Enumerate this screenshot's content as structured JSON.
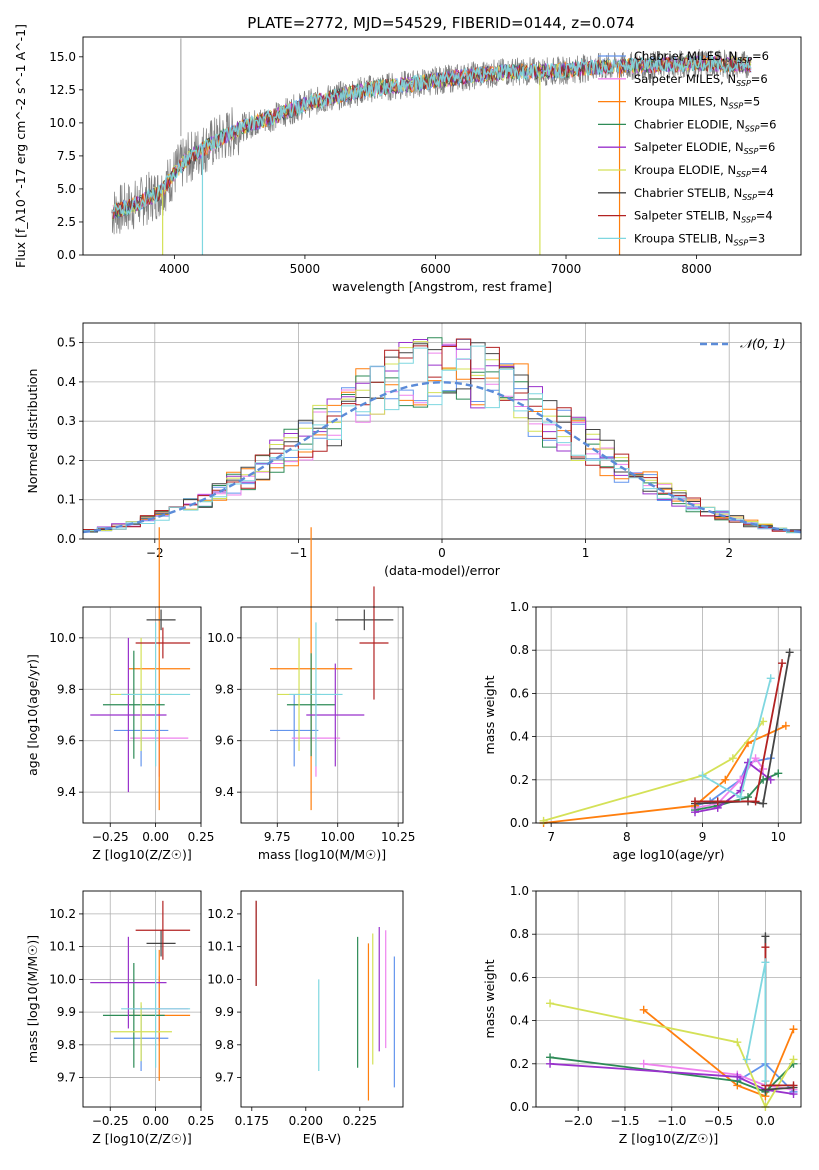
{
  "figure": {
    "title": "PLATE=2772, MJD=54529, FIBERID=0144, z=0.074"
  },
  "colors": {
    "series": [
      "#6495ed",
      "#ee82ee",
      "#ff7f0e",
      "#2e8b57",
      "#9932cc",
      "#d4e157",
      "#444444",
      "#b22222",
      "#7fd7e0"
    ],
    "data": "#7f7f7f"
  },
  "legend": {
    "spectrum": [
      "Chabrier MILES, N_SSP=6",
      "Salpeter MILES, N_SSP=6",
      "Kroupa MILES, N_SSP=5",
      "Chabrier ELODIE, N_SSP=6",
      "Salpeter ELODIE, N_SSP=6",
      "Kroupa ELODIE, N_SSP=4",
      "Chabrier STELIB, N_SSP=4",
      "Salpeter STELIB, N_SSP=4",
      "Kroupa STELIB, N_SSP=3"
    ],
    "normal": "𝒩(0, 1)"
  },
  "chart_data": [
    {
      "id": "spectrum",
      "type": "line",
      "xlabel": "wavelength [Angstrom, rest frame]",
      "ylabel": "Flux [f_λ10^-17 erg cm^-2 s^-1 A^-1]",
      "xlim": [
        3300,
        8800
      ],
      "ylim": [
        0,
        16.5
      ],
      "xticks": [
        4000,
        5000,
        6000,
        7000,
        8000
      ],
      "yticks": [
        0.0,
        2.5,
        5.0,
        7.5,
        10.0,
        12.5,
        15.0
      ],
      "xtick_labels": [
        "4000",
        "5000",
        "6000",
        "7000",
        "8000"
      ],
      "ytick_labels": [
        "0.0",
        "2.5",
        "5.0",
        "7.5",
        "10.0",
        "12.5",
        "15.0"
      ],
      "grid": false,
      "legend_position": "right",
      "series": [
        {
          "name": "data",
          "x": [
            3520,
            3700,
            3900,
            4000,
            4100,
            4300,
            4500,
            4800,
            5000,
            5200,
            5500,
            5800,
            6000,
            6300,
            6600,
            6900,
            7200,
            7500,
            8000,
            8400
          ],
          "y": [
            3.2,
            3.8,
            4.8,
            6.2,
            7.3,
            8.5,
            9.6,
            10.6,
            11.4,
            11.9,
            12.6,
            12.9,
            13.2,
            13.6,
            13.9,
            13.9,
            14.2,
            14.3,
            14.5,
            14.4
          ]
        }
      ]
    },
    {
      "id": "residuals",
      "type": "line",
      "xlabel": "(data-model)/error",
      "ylabel": "Normed distribution",
      "xlim": [
        -2.5,
        2.5
      ],
      "ylim": [
        0,
        0.55
      ],
      "xticks": [
        -2,
        -1,
        0,
        1,
        2
      ],
      "yticks": [
        0.0,
        0.1,
        0.2,
        0.3,
        0.4,
        0.5
      ],
      "xtick_labels": [
        "−2",
        "−1",
        "0",
        "1",
        "2"
      ],
      "ytick_labels": [
        "0.0",
        "0.1",
        "0.2",
        "0.3",
        "0.4",
        "0.5"
      ],
      "grid": true,
      "legend_position": "top-right",
      "series": [
        {
          "name": "𝒩(0, 1)",
          "x": [
            -2.5,
            -2,
            -1.5,
            -1,
            -0.5,
            0,
            0.5,
            1,
            1.5,
            2,
            2.5
          ],
          "y": [
            0.018,
            0.054,
            0.13,
            0.242,
            0.352,
            0.399,
            0.352,
            0.242,
            0.13,
            0.054,
            0.018
          ]
        }
      ]
    },
    {
      "id": "age_vs_Z",
      "type": "scatter",
      "xlabel": "Z [log10(Z/Z☉)]",
      "ylabel": "age [log10(age/yr)]",
      "xlim": [
        -0.4,
        0.25
      ],
      "ylim": [
        9.28,
        10.12
      ],
      "xticks": [
        -0.25,
        0,
        0.25
      ],
      "yticks": [
        9.4,
        9.6,
        9.8,
        10.0
      ],
      "xtick_labels": [
        "−0.25",
        "0.00",
        "0.25"
      ],
      "ytick_labels": [
        "9.4",
        "9.6",
        "9.8",
        "10.0"
      ],
      "grid": true,
      "points": [
        {
          "x": -0.08,
          "y": 9.64,
          "xerr": 0.15,
          "yerr": 0.14
        },
        {
          "x": 0.02,
          "y": 9.61,
          "xerr": 0.16,
          "yerr": 0.15
        },
        {
          "x": 0.02,
          "y": 9.88,
          "xerr": 0.17,
          "yerr": 0.55
        },
        {
          "x": -0.12,
          "y": 9.74,
          "xerr": 0.17,
          "yerr": 0.21
        },
        {
          "x": -0.15,
          "y": 9.7,
          "xerr": 0.21,
          "yerr": 0.3
        },
        {
          "x": -0.08,
          "y": 9.78,
          "xerr": 0.17,
          "yerr": 0.22
        },
        {
          "x": 0.03,
          "y": 10.07,
          "xerr": 0.08,
          "yerr": 0.04
        },
        {
          "x": 0.04,
          "y": 9.98,
          "xerr": 0.15,
          "yerr": 0.06
        },
        {
          "x": 0.0,
          "y": 9.78,
          "xerr": 0.19,
          "yerr": 0.28
        }
      ]
    },
    {
      "id": "age_vs_mass",
      "type": "scatter",
      "xlabel": "mass [log10(M/M☉)]",
      "ylabel": "",
      "xlim": [
        9.6,
        10.27
      ],
      "ylim": [
        9.28,
        10.12
      ],
      "xticks": [
        9.75,
        10.0,
        10.25
      ],
      "yticks": [
        9.4,
        9.6,
        9.8,
        10.0
      ],
      "xtick_labels": [
        "9.75",
        "10.00",
        "10.25"
      ],
      "ytick_labels": [
        "9.4",
        "9.6",
        "9.8",
        "10.0"
      ],
      "grid": true,
      "points": [
        {
          "x": 9.82,
          "y": 9.64,
          "xerr": 0.1,
          "yerr": 0.14
        },
        {
          "x": 9.91,
          "y": 9.61,
          "xerr": 0.1,
          "yerr": 0.15
        },
        {
          "x": 9.89,
          "y": 9.88,
          "xerr": 0.17,
          "yerr": 0.55
        },
        {
          "x": 9.89,
          "y": 9.74,
          "xerr": 0.1,
          "yerr": 0.2
        },
        {
          "x": 9.99,
          "y": 9.7,
          "xerr": 0.12,
          "yerr": 0.2
        },
        {
          "x": 9.84,
          "y": 9.78,
          "xerr": 0.09,
          "yerr": 0.22
        },
        {
          "x": 10.11,
          "y": 10.07,
          "xerr": 0.12,
          "yerr": 0.04
        },
        {
          "x": 10.15,
          "y": 9.98,
          "xerr": 0.06,
          "yerr": 0.22
        },
        {
          "x": 9.91,
          "y": 9.78,
          "xerr": 0.11,
          "yerr": 0.28
        }
      ]
    },
    {
      "id": "massweight_vs_age",
      "type": "line",
      "xlabel": "age log10(age/yr)",
      "ylabel": "mass weight",
      "xlim": [
        6.8,
        10.3
      ],
      "ylim": [
        0,
        1.0
      ],
      "xticks": [
        7,
        8,
        9,
        10
      ],
      "yticks": [
        0.0,
        0.2,
        0.4,
        0.6,
        0.8,
        1.0
      ],
      "xtick_labels": [
        "7",
        "8",
        "9",
        "10"
      ],
      "ytick_labels": [
        "0.0",
        "0.2",
        "0.4",
        "0.6",
        "0.8",
        "1.0"
      ],
      "grid": true,
      "series": [
        {
          "x": [
            8.9,
            9.1,
            9.5,
            9.6,
            9.9
          ],
          "y": [
            0.08,
            0.1,
            0.2,
            0.28,
            0.3
          ]
        },
        {
          "x": [
            8.9,
            9.2,
            9.5,
            9.7,
            9.8
          ],
          "y": [
            0.07,
            0.09,
            0.2,
            0.3,
            0.25
          ]
        },
        {
          "x": [
            6.9,
            8.9,
            9.3,
            9.6,
            10.1
          ],
          "y": [
            0.0,
            0.08,
            0.2,
            0.37,
            0.45
          ]
        },
        {
          "x": [
            8.9,
            9.2,
            9.6,
            9.8,
            10.0
          ],
          "y": [
            0.06,
            0.08,
            0.12,
            0.2,
            0.23
          ]
        },
        {
          "x": [
            8.9,
            9.2,
            9.5,
            9.6,
            9.9
          ],
          "y": [
            0.05,
            0.07,
            0.15,
            0.28,
            0.2
          ]
        },
        {
          "x": [
            6.9,
            9.0,
            9.4,
            9.8
          ],
          "y": [
            0.01,
            0.22,
            0.3,
            0.47
          ]
        },
        {
          "x": [
            8.9,
            9.6,
            9.8,
            10.15
          ],
          "y": [
            0.09,
            0.1,
            0.09,
            0.79
          ]
        },
        {
          "x": [
            8.9,
            9.2,
            9.7,
            10.05
          ],
          "y": [
            0.1,
            0.1,
            0.1,
            0.74
          ]
        },
        {
          "x": [
            9.0,
            9.5,
            9.9
          ],
          "y": [
            0.22,
            0.12,
            0.67
          ]
        }
      ]
    },
    {
      "id": "mass_vs_Z",
      "type": "scatter",
      "xlabel": "Z [log10(Z/Z☉)]",
      "ylabel": "mass [log10(M/M☉)]",
      "xlim": [
        -0.4,
        0.25
      ],
      "ylim": [
        9.61,
        10.27
      ],
      "xticks": [
        -0.25,
        0,
        0.25
      ],
      "yticks": [
        9.7,
        9.8,
        9.9,
        10.0,
        10.1,
        10.2
      ],
      "xtick_labels": [
        "−0.25",
        "0.00",
        "0.25"
      ],
      "ytick_labels": [
        "9.7",
        "9.8",
        "9.9",
        "10.0",
        "10.1",
        "10.2"
      ],
      "grid": true,
      "points": [
        {
          "x": -0.08,
          "y": 9.82,
          "xerr": 0.15,
          "yerr": 0.1
        },
        {
          "x": 0.02,
          "y": 9.91,
          "xerr": 0.16,
          "yerr": 0.1
        },
        {
          "x": 0.02,
          "y": 9.89,
          "xerr": 0.17,
          "yerr": 0.2
        },
        {
          "x": -0.12,
          "y": 9.89,
          "xerr": 0.17,
          "yerr": 0.16
        },
        {
          "x": -0.15,
          "y": 9.99,
          "xerr": 0.21,
          "yerr": 0.14
        },
        {
          "x": -0.08,
          "y": 9.84,
          "xerr": 0.17,
          "yerr": 0.09
        },
        {
          "x": 0.03,
          "y": 10.11,
          "xerr": 0.08,
          "yerr": 0.04
        },
        {
          "x": 0.04,
          "y": 10.15,
          "xerr": 0.15,
          "yerr": 0.09
        },
        {
          "x": 0.0,
          "y": 9.91,
          "xerr": 0.19,
          "yerr": 0.18
        }
      ]
    },
    {
      "id": "mass_vs_ebv",
      "type": "scatter",
      "xlabel": "E(B-V)",
      "ylabel": "",
      "xlim": [
        0.17,
        0.245
      ],
      "ylim": [
        9.61,
        10.27
      ],
      "xticks": [
        0.175,
        0.2,
        0.225
      ],
      "yticks": [
        9.7,
        9.8,
        9.9,
        10.0,
        10.1,
        10.2
      ],
      "xtick_labels": [
        "0.175",
        "0.200",
        "0.225"
      ],
      "ytick_labels": [
        "9.7",
        "9.8",
        "9.9",
        "10.0",
        "10.1",
        "10.2"
      ],
      "grid": false,
      "points": [
        {
          "x": 0.241,
          "y": 9.87,
          "xerr": 0,
          "yerr": 0.2
        },
        {
          "x": 0.237,
          "y": 9.97,
          "xerr": 0,
          "yerr": 0.18
        },
        {
          "x": 0.229,
          "y": 9.87,
          "xerr": 0,
          "yerr": 0.24
        },
        {
          "x": 0.224,
          "y": 9.93,
          "xerr": 0,
          "yerr": 0.2
        },
        {
          "x": 0.234,
          "y": 9.97,
          "xerr": 0,
          "yerr": 0.19
        },
        {
          "x": 0.231,
          "y": 9.94,
          "xerr": 0,
          "yerr": 0.2
        },
        {
          "x": 0.177,
          "y": 10.11,
          "xerr": 0,
          "yerr": 0.13
        },
        {
          "x": 0.177,
          "y": 10.11,
          "xerr": 0,
          "yerr": 0.13
        },
        {
          "x": 0.206,
          "y": 9.86,
          "xerr": 0,
          "yerr": 0.14
        }
      ]
    },
    {
      "id": "massweight_vs_Z",
      "type": "line",
      "xlabel": "Z [log10(Z/Z☉)]",
      "ylabel": "mass weight",
      "xlim": [
        -2.45,
        0.38
      ],
      "ylim": [
        0,
        1.0
      ],
      "xticks": [
        -2.0,
        -1.5,
        -1.0,
        -0.5,
        0.0
      ],
      "yticks": [
        0.0,
        0.2,
        0.4,
        0.6,
        0.8,
        1.0
      ],
      "xtick_labels": [
        "−2.0",
        "−1.5",
        "−1.0",
        "−0.5",
        "0.0"
      ],
      "ytick_labels": [
        "0.0",
        "0.2",
        "0.4",
        "0.6",
        "0.8",
        "1.0"
      ],
      "grid": true,
      "series": [
        {
          "x": [
            -0.3,
            0.0,
            0.3
          ],
          "y": [
            0.12,
            0.2,
            0.07
          ]
        },
        {
          "x": [
            -1.3,
            -0.3,
            0.0,
            0.3
          ],
          "y": [
            0.2,
            0.15,
            0.1,
            0.08
          ]
        },
        {
          "x": [
            -1.3,
            -0.3,
            0.0,
            0.3
          ],
          "y": [
            0.45,
            0.1,
            0.05,
            0.36
          ]
        },
        {
          "x": [
            -2.3,
            -0.3,
            0.0,
            0.3
          ],
          "y": [
            0.23,
            0.12,
            0.07,
            0.2
          ]
        },
        {
          "x": [
            -2.3,
            -0.3,
            0.0,
            0.3
          ],
          "y": [
            0.2,
            0.14,
            0.08,
            0.06
          ]
        },
        {
          "x": [
            -2.3,
            -0.3,
            0.0,
            0.3
          ],
          "y": [
            0.48,
            0.3,
            0.0,
            0.22
          ]
        },
        {
          "x": [
            0.0,
            0.0,
            0.3
          ],
          "y": [
            0.79,
            0.08,
            0.09
          ]
        },
        {
          "x": [
            0.0,
            0.0,
            0.3
          ],
          "y": [
            0.74,
            0.1,
            0.1
          ]
        },
        {
          "x": [
            -0.2,
            0.0,
            0.0
          ],
          "y": [
            0.22,
            0.67,
            0.12
          ]
        }
      ]
    }
  ]
}
